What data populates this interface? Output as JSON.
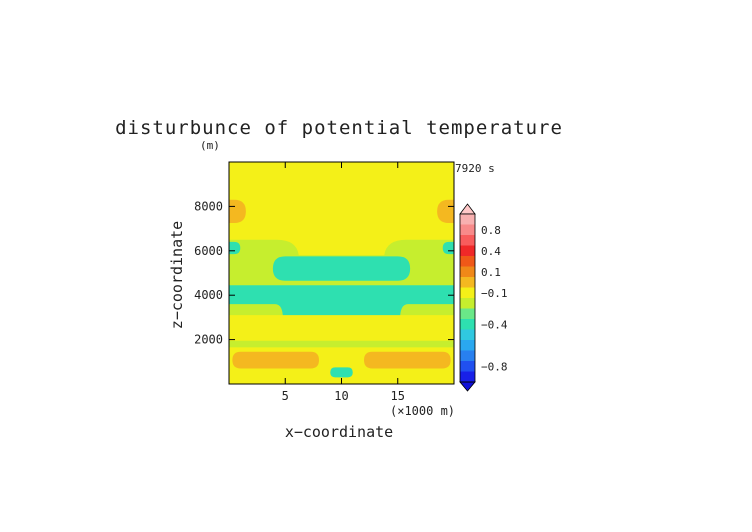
{
  "chart_data": {
    "type": "heatmap",
    "title": "disturbunce of potential temperature",
    "ylabel_unit": "(m)",
    "time_label": "7920 s",
    "xlabel": "x−coordinate",
    "ylabel": "z−coordinate",
    "x_unit": "(×1000 m)",
    "xlim": [
      0,
      20
    ],
    "ylim": [
      0,
      10000
    ],
    "x_ticks": [
      {
        "value": 5,
        "label": "5"
      },
      {
        "value": 10,
        "label": "10"
      },
      {
        "value": 15,
        "label": "15"
      }
    ],
    "y_ticks": [
      {
        "value": 2000,
        "label": "2000"
      },
      {
        "value": 4000,
        "label": "4000"
      },
      {
        "value": 6000,
        "label": "6000"
      },
      {
        "value": 8000,
        "label": "8000"
      }
    ],
    "background_level_color": "#f4f018",
    "regions": [
      {
        "level": "-0.1..0",
        "color": "#c6ee2e",
        "x": [
          0,
          20
        ],
        "z": [
          1650,
          6500
        ],
        "notch_center": {
          "x0": 6.2,
          "x1": 13.8,
          "z": 5800
        }
      },
      {
        "level": "-0.4..-0.1",
        "color": "#2ee0b0",
        "x": [
          3.9,
          16.1
        ],
        "z": [
          4650,
          5750
        ]
      },
      {
        "level": "-0.4..-0.1",
        "color": "#2ee0b0",
        "x": [
          0,
          20
        ],
        "z": [
          3600,
          4450
        ],
        "bulge": {
          "x0": 4.8,
          "x1": 15.2,
          "z0": 2550
        }
      },
      {
        "level": "0..0.1",
        "color": "#f4f018",
        "x": [
          0,
          20
        ],
        "z": [
          1950,
          3100
        ]
      },
      {
        "level": "0.1..0.2",
        "color": "#f4b820",
        "x": [
          0.3,
          8.0
        ],
        "z": [
          700,
          1450
        ]
      },
      {
        "level": "0.1..0.2",
        "color": "#f4b820",
        "x": [
          12.0,
          19.7
        ],
        "z": [
          700,
          1450
        ]
      },
      {
        "level": "0.1..0.2",
        "color": "#f4b820",
        "x": [
          0,
          1.5
        ],
        "z": [
          7250,
          8300
        ]
      },
      {
        "level": "0.1..0.2",
        "color": "#f4b820",
        "x": [
          18.5,
          20
        ],
        "z": [
          7250,
          8300
        ]
      },
      {
        "level": "-0.4..-0.1",
        "color": "#2ee0b0",
        "x": [
          9.0,
          11.0
        ],
        "z": [
          300,
          750
        ]
      },
      {
        "level": "-0.4..-0.1",
        "color": "#2ee0b0",
        "x": [
          0,
          1.0
        ],
        "z": [
          5850,
          6400
        ]
      },
      {
        "level": "-0.4..-0.1",
        "color": "#2ee0b0",
        "x": [
          19.0,
          20
        ],
        "z": [
          5850,
          6400
        ]
      }
    ],
    "colorbar": {
      "bands": [
        {
          "color": "#f8b0b0"
        },
        {
          "color": "#f88a8a"
        },
        {
          "color": "#f85c5c"
        },
        {
          "color": "#f02828"
        },
        {
          "color": "#f05818"
        },
        {
          "color": "#f08818"
        },
        {
          "color": "#f4b820"
        },
        {
          "color": "#f4f018"
        },
        {
          "color": "#c6ee2e"
        },
        {
          "color": "#6ae888"
        },
        {
          "color": "#2ee0b0"
        },
        {
          "color": "#30c8e0"
        },
        {
          "color": "#2aa8f0"
        },
        {
          "color": "#2880f0"
        },
        {
          "color": "#2050f0"
        },
        {
          "color": "#1820e8"
        }
      ],
      "top_triangle_color": "#ffc8c8",
      "bottom_triangle_color": "#1010d8",
      "labels": [
        {
          "text": "0.8",
          "band": 1.5
        },
        {
          "text": "0.4",
          "band": 3.5
        },
        {
          "text": "0.1",
          "band": 5.5
        },
        {
          "text": "−0.1",
          "band": 7.5
        },
        {
          "text": "−0.4",
          "band": 10.5
        },
        {
          "text": "−0.8",
          "band": 14.5
        }
      ]
    }
  }
}
